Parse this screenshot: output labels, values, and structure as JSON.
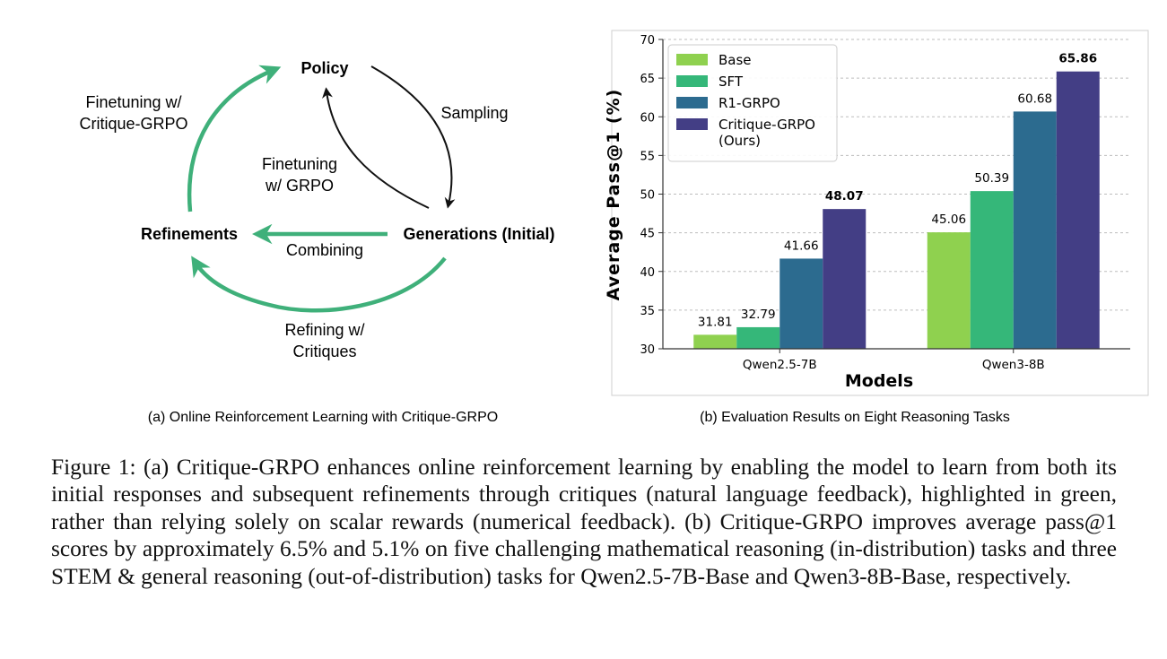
{
  "diagram": {
    "policy": "Policy",
    "sampling": "Sampling",
    "generations": "Generations (Initial)",
    "refinements": "Refinements",
    "combining": "Combining",
    "finetune_critique_l1": "Finetuning w/",
    "finetune_critique_l2": "Critique-GRPO",
    "finetune_grpo_l1": "Finetuning",
    "finetune_grpo_l2": "w/ GRPO",
    "refining_l1": "Refining w/",
    "refining_l2": "Critiques",
    "subcaption": "(a) Online Reinforcement Learning with Critique-GRPO",
    "colors": {
      "green": "#3fb07a",
      "black": "#111111"
    }
  },
  "chart_data": {
    "type": "bar",
    "subcaption": "(b) Evaluation Results on Eight Reasoning Tasks",
    "xlabel": "Models",
    "ylabel": "Average Pass@1 (%)",
    "ylim": [
      30,
      70
    ],
    "yticks": [
      30,
      35,
      40,
      45,
      50,
      55,
      60,
      65,
      70
    ],
    "grid": true,
    "legend_position": "top-left",
    "categories": [
      "Qwen2.5-7B",
      "Qwen3-8B"
    ],
    "series": [
      {
        "name": "Base",
        "color": "#8fd14f",
        "values": [
          31.81,
          45.06
        ]
      },
      {
        "name": "SFT",
        "color": "#35b779",
        "values": [
          32.79,
          50.39
        ]
      },
      {
        "name": "R1-GRPO",
        "color": "#2c6b8f",
        "values": [
          41.66,
          60.68
        ]
      },
      {
        "name": "Critique-GRPO\n(Ours)",
        "legend_lines": [
          "Critique-GRPO",
          "(Ours)"
        ],
        "color": "#433e85",
        "values": [
          48.07,
          65.86
        ],
        "bold_labels": true
      }
    ],
    "data_labels": [
      [
        "31.81",
        "45.06"
      ],
      [
        "32.79",
        "50.39"
      ],
      [
        "41.66",
        "60.68"
      ],
      [
        "48.07",
        "65.86"
      ]
    ]
  },
  "caption": {
    "text": "Figure 1: (a) Critique-GRPO enhances online reinforcement learning by enabling the model to learn from both its initial responses and subsequent refinements through critiques (natural language feedback), highlighted in green, rather than relying solely on scalar rewards (numerical feedback). (b) Critique-GRPO improves average pass@1 scores by approximately 6.5% and 5.1% on five challenging mathematical reasoning (in-distribution) tasks and three STEM & general reasoning (out-of-distribution) tasks for Qwen2.5-7B-Base and Qwen3-8B-Base, respectively."
  }
}
